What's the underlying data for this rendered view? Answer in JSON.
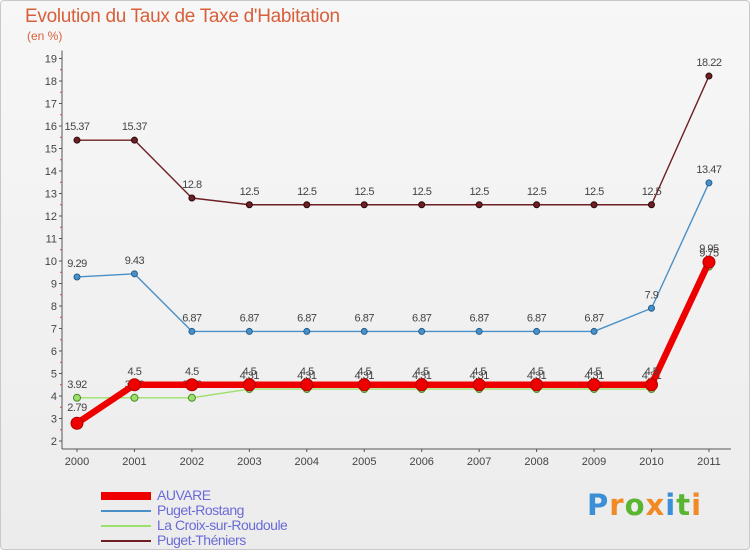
{
  "chart_data": {
    "type": "line",
    "title": "Evolution du Taux de Taxe d'Habitation",
    "subtitle": "(en %)",
    "xlabel": "",
    "ylabel": "",
    "ylim": [
      2,
      19
    ],
    "yticks": [
      "2",
      "3",
      "4",
      "5",
      "6",
      "7",
      "8",
      "9",
      "10",
      "11",
      "12",
      "13",
      "14",
      "15",
      "16",
      "17",
      "18",
      "19"
    ],
    "categories": [
      "2000",
      "2001",
      "2002",
      "2003",
      "2004",
      "2005",
      "2006",
      "2007",
      "2008",
      "2009",
      "2010",
      "2011"
    ],
    "grid": false,
    "legend_position": "bottom-left",
    "series": [
      {
        "name": "Puget-Théniers",
        "color": "#6e1f24",
        "values": [
          15.37,
          15.37,
          12.8,
          12.5,
          12.5,
          12.5,
          12.5,
          12.5,
          12.5,
          12.5,
          12.5,
          18.22
        ],
        "labels": [
          "15.37",
          "15.37",
          "12.8",
          "12.5",
          "12.5",
          "12.5",
          "12.5",
          "12.5",
          "12.5",
          "12.5",
          "12.5",
          "18.22"
        ]
      },
      {
        "name": "Puget-Rostang",
        "color": "#4a90c8",
        "values": [
          9.29,
          9.43,
          6.87,
          6.87,
          6.87,
          6.87,
          6.87,
          6.87,
          6.87,
          6.87,
          7.9,
          13.47
        ],
        "labels": [
          "9.29",
          "9.43",
          "6.87",
          "6.87",
          "6.87",
          "6.87",
          "6.87",
          "6.87",
          "6.87",
          "6.87",
          "7.9",
          "13.47"
        ]
      },
      {
        "name": "La Croix-sur-Roudoule",
        "color": "#9be06a",
        "values": [
          3.92,
          3.92,
          3.92,
          4.31,
          4.31,
          4.31,
          4.31,
          4.31,
          4.31,
          4.31,
          4.31,
          9.75
        ],
        "labels": [
          "3.92",
          "3.92",
          "3.92",
          "4.31",
          "4.31",
          "4.31",
          "4.31",
          "4.31",
          "4.31",
          "4.31",
          "4.31",
          "9.75"
        ]
      },
      {
        "name": "AUVARE",
        "color": "#ee0000",
        "values": [
          2.79,
          4.5,
          4.5,
          4.5,
          4.5,
          4.5,
          4.5,
          4.5,
          4.5,
          4.5,
          4.5,
          9.95
        ],
        "labels": [
          "2.79",
          "4.5",
          "4.5",
          "4.5",
          "4.5",
          "4.5",
          "4.5",
          "4.5",
          "4.5",
          "4.5",
          "4.5",
          "9.95"
        ]
      }
    ],
    "legend": [
      {
        "name": "AUVARE",
        "color": "#ee0000"
      },
      {
        "name": "Puget-Rostang",
        "color": "#4a90c8"
      },
      {
        "name": "La Croix-sur-Roudoule",
        "color": "#9be06a"
      },
      {
        "name": "Puget-Théniers",
        "color": "#6e1f24"
      }
    ]
  },
  "brand": {
    "letters": [
      "P",
      "r",
      "o",
      "x",
      "i",
      "t",
      "i"
    ],
    "colors": [
      "#3b8fd6",
      "#f08a24",
      "#5ab531",
      "#f08a24",
      "#3b8fd6",
      "#5ab531",
      "#f08a24"
    ]
  }
}
